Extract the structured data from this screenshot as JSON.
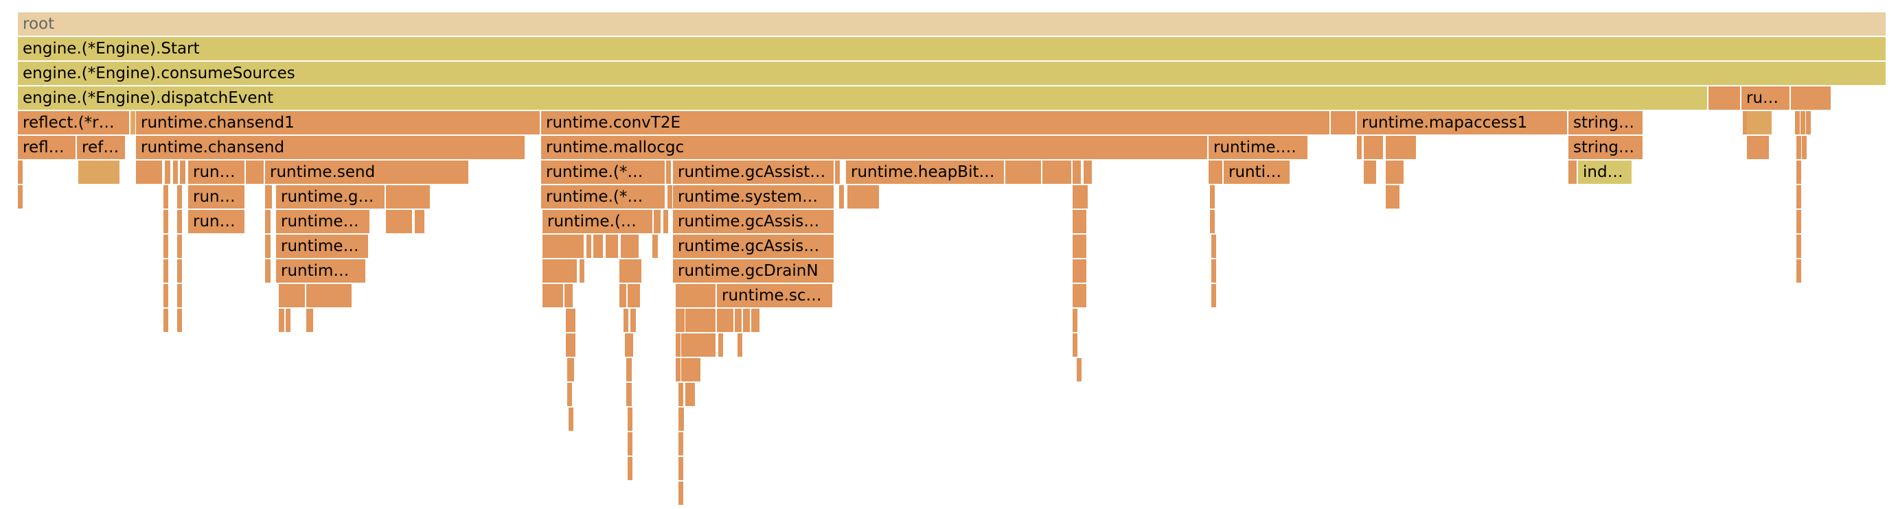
{
  "labels": {
    "root": "root",
    "start": "engine.(*Engine).Start",
    "consume": "engine.(*Engine).consumeSources",
    "dispatch": "engine.(*Engine).dispatchEvent",
    "ru": "ru…",
    "reflect_r": "reflect.(*r…",
    "chansend1": "runtime.chansend1",
    "convT2E": "runtime.convT2E",
    "mapaccess1": "runtime.mapaccess1",
    "string1": "string…",
    "refl": "refl…",
    "ref": "ref…",
    "chansend": "runtime.chansend",
    "mallocgc": "runtime.mallocgc",
    "runtime_dots": "runtime.…",
    "string2": "string…",
    "run1": "run…",
    "send": "runtime.send",
    "runtime_star1": "runtime.(*…",
    "gcAssist": "runtime.gcAssist…",
    "heapBit": "runtime.heapBit…",
    "runti": "runti…",
    "ind": "ind…",
    "run2": "run…",
    "runtime_g": "runtime.g…",
    "runtime_star2": "runtime.(*…",
    "system": "runtime.system…",
    "run3": "run…",
    "runtime_5a": "runtime…",
    "runtime_paren": "runtime.(…",
    "gcAssis1": "runtime.gcAssis…",
    "runtime_5b": "runtime…",
    "gcAssis2": "runtime.gcAssis…",
    "runtim": "runtim…",
    "gcDrainN": "runtime.gcDrainN",
    "sc": "runtime.sc…"
  },
  "colors": {
    "root": "#e8cfa4",
    "yellow": "#d7c76c",
    "orange": "#e0965c",
    "light_orange": "#e0aa66"
  }
}
